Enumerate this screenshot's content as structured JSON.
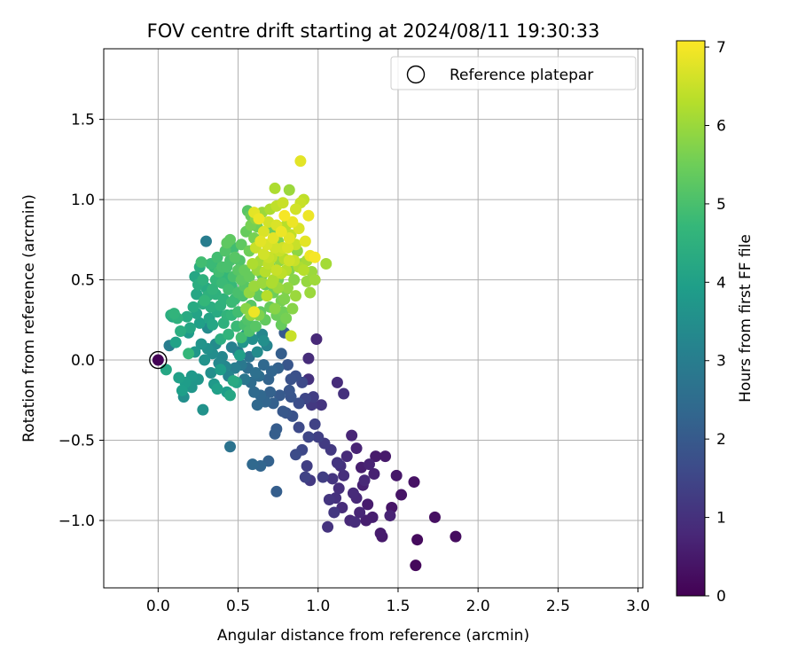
{
  "chart_data": {
    "type": "scatter",
    "title": "FOV centre drift starting at 2024/08/11 19:30:33",
    "xlabel": "Angular distance from reference (arcmin)",
    "ylabel": "Rotation from reference (arcmin)",
    "xlim": [
      -0.34,
      3.03
    ],
    "ylim": [
      -1.42,
      1.94
    ],
    "xticks": [
      0.0,
      0.5,
      1.0,
      1.5,
      2.0,
      2.5,
      3.0
    ],
    "xtick_labels": [
      "0.0",
      "0.5",
      "1.0",
      "1.5",
      "2.0",
      "2.5",
      "3.0"
    ],
    "yticks": [
      -1.0,
      -0.5,
      0.0,
      0.5,
      1.0,
      1.5
    ],
    "ytick_labels": [
      "−1.0",
      "−0.5",
      "0.0",
      "0.5",
      "1.0",
      "1.5"
    ],
    "grid": true,
    "legend": {
      "position": "top-right",
      "entries": [
        {
          "label": "Reference platepar",
          "marker": "open-circle",
          "x": 0.0,
          "y": 0.0
        }
      ]
    },
    "colorbar": {
      "label": "Hours from first FF file",
      "colormap": "viridis",
      "range": [
        0,
        7.08
      ],
      "ticks": [
        0,
        1,
        2,
        3,
        4,
        5,
        6,
        7
      ],
      "tick_labels": [
        "0",
        "1",
        "2",
        "3",
        "4",
        "5",
        "6",
        "7"
      ]
    },
    "colormap_stops": [
      "#440154",
      "#482878",
      "#3e4989",
      "#31688e",
      "#26828e",
      "#1f9e89",
      "#35b779",
      "#6ece58",
      "#b5de2b",
      "#fde725"
    ],
    "point_note": "[x arcmin, y arcmin, hours from first FF file]",
    "points": [
      [
        0.0,
        0.0,
        0.05
      ],
      [
        1.61,
        -1.28,
        0.15
      ],
      [
        1.62,
        -1.12,
        0.2
      ],
      [
        1.86,
        -1.1,
        0.25
      ],
      [
        1.73,
        -0.98,
        0.3
      ],
      [
        1.6,
        -0.76,
        0.35
      ],
      [
        1.52,
        -0.84,
        0.4
      ],
      [
        1.46,
        -0.92,
        0.4
      ],
      [
        1.49,
        -0.72,
        0.45
      ],
      [
        1.42,
        -0.6,
        0.5
      ],
      [
        1.4,
        -1.1,
        0.5
      ],
      [
        1.39,
        -1.08,
        0.55
      ],
      [
        1.34,
        -0.98,
        0.6
      ],
      [
        1.31,
        -0.9,
        0.55
      ],
      [
        1.3,
        -1.0,
        0.6
      ],
      [
        1.28,
        -0.78,
        0.65
      ],
      [
        1.36,
        -0.6,
        0.5
      ],
      [
        1.45,
        -0.97,
        0.7
      ],
      [
        1.26,
        -0.95,
        0.75
      ],
      [
        1.24,
        -0.86,
        0.8
      ],
      [
        1.22,
        -0.83,
        0.85
      ],
      [
        1.2,
        -1.0,
        0.8
      ],
      [
        1.15,
        -0.92,
        0.9
      ],
      [
        1.23,
        -1.01,
        0.9
      ],
      [
        1.27,
        -0.67,
        0.6
      ],
      [
        1.24,
        -0.55,
        0.7
      ],
      [
        1.21,
        -0.47,
        0.75
      ],
      [
        1.18,
        -0.6,
        0.85
      ],
      [
        1.14,
        -0.66,
        1.0
      ],
      [
        1.13,
        -0.8,
        0.95
      ],
      [
        1.11,
        -0.86,
        1.0
      ],
      [
        1.09,
        -0.74,
        1.1
      ],
      [
        1.06,
        -1.04,
        1.05
      ],
      [
        1.07,
        -0.87,
        1.1
      ],
      [
        1.1,
        -0.95,
        1.15
      ],
      [
        1.35,
        -0.71,
        0.65
      ],
      [
        1.32,
        -0.65,
        0.7
      ],
      [
        1.29,
        -0.75,
        0.8
      ],
      [
        1.16,
        -0.72,
        0.95
      ],
      [
        1.12,
        -0.64,
        1.1
      ],
      [
        1.08,
        -0.56,
        1.2
      ],
      [
        1.04,
        -0.52,
        1.25
      ],
      [
        1.03,
        -0.73,
        1.3
      ],
      [
        1.0,
        -0.48,
        1.35
      ],
      [
        0.98,
        -0.4,
        1.4
      ],
      [
        0.94,
        -0.48,
        1.5
      ],
      [
        0.93,
        -0.66,
        1.3
      ],
      [
        0.92,
        -0.73,
        1.4
      ],
      [
        0.95,
        -0.75,
        1.2
      ],
      [
        0.9,
        -0.56,
        1.55
      ],
      [
        0.88,
        -0.42,
        1.6
      ],
      [
        0.86,
        -0.59,
        1.65
      ],
      [
        0.96,
        -0.28,
        1.2
      ],
      [
        1.02,
        -0.28,
        1.1
      ],
      [
        0.94,
        -0.12,
        1.0
      ],
      [
        0.94,
        0.01,
        0.9
      ],
      [
        0.99,
        0.13,
        0.8
      ],
      [
        1.12,
        -0.14,
        0.9
      ],
      [
        1.16,
        -0.21,
        1.0
      ],
      [
        0.97,
        -0.23,
        1.3
      ],
      [
        0.92,
        -0.24,
        1.5
      ],
      [
        0.9,
        -0.14,
        1.6
      ],
      [
        0.88,
        -0.27,
        1.7
      ],
      [
        0.86,
        -0.1,
        1.75
      ],
      [
        0.84,
        -0.35,
        1.8
      ],
      [
        0.83,
        -0.23,
        1.85
      ],
      [
        0.8,
        -0.33,
        1.9
      ],
      [
        0.78,
        -0.32,
        1.95
      ],
      [
        0.76,
        -0.22,
        2.0
      ],
      [
        0.82,
        -0.19,
        1.9
      ],
      [
        0.74,
        -0.43,
        2.05
      ],
      [
        0.73,
        -0.46,
        2.1
      ],
      [
        0.72,
        -0.27,
        2.15
      ],
      [
        0.7,
        -0.2,
        2.2
      ],
      [
        0.69,
        -0.12,
        2.25
      ],
      [
        0.67,
        -0.26,
        2.3
      ],
      [
        0.64,
        -0.22,
        2.35
      ],
      [
        0.62,
        -0.28,
        2.4
      ],
      [
        0.6,
        -0.2,
        2.45
      ],
      [
        0.58,
        -0.14,
        2.5
      ],
      [
        0.56,
        -0.05,
        2.55
      ],
      [
        0.74,
        -0.82,
        2.1
      ],
      [
        0.69,
        -0.63,
        2.2
      ],
      [
        0.64,
        -0.66,
        2.3
      ],
      [
        0.59,
        -0.65,
        2.4
      ],
      [
        0.45,
        -0.54,
        2.7
      ],
      [
        0.83,
        -0.12,
        1.8
      ],
      [
        0.81,
        -0.03,
        1.9
      ],
      [
        0.79,
        0.17,
        2.0
      ],
      [
        0.77,
        0.04,
        2.1
      ],
      [
        0.75,
        -0.05,
        2.2
      ],
      [
        0.71,
        -0.07,
        2.3
      ],
      [
        0.66,
        -0.03,
        2.4
      ],
      [
        0.63,
        -0.1,
        2.5
      ],
      [
        0.61,
        -0.08,
        2.6
      ],
      [
        0.57,
        0.02,
        2.7
      ],
      [
        0.54,
        -0.12,
        2.8
      ],
      [
        0.52,
        -0.03,
        2.85
      ],
      [
        0.5,
        0.05,
        2.9
      ],
      [
        0.48,
        -0.05,
        3.0
      ],
      [
        0.46,
        0.08,
        3.1
      ],
      [
        0.44,
        -0.1,
        3.2
      ],
      [
        0.42,
        -0.04,
        3.25
      ],
      [
        0.4,
        0.02,
        3.3
      ],
      [
        0.38,
        -0.02,
        3.35
      ],
      [
        0.36,
        0.1,
        3.4
      ],
      [
        0.34,
        0.04,
        3.45
      ],
      [
        0.33,
        -0.08,
        3.5
      ],
      [
        0.31,
        0.07,
        3.55
      ],
      [
        0.29,
        0.0,
        3.6
      ],
      [
        0.27,
        0.1,
        3.65
      ],
      [
        0.25,
        -0.12,
        3.7
      ],
      [
        0.23,
        0.05,
        3.75
      ],
      [
        0.21,
        -0.1,
        3.8
      ],
      [
        0.19,
        0.17,
        3.85
      ],
      [
        0.17,
        -0.14,
        3.9
      ],
      [
        0.15,
        -0.19,
        3.95
      ],
      [
        0.13,
        -0.11,
        4.0
      ],
      [
        0.11,
        0.11,
        4.05
      ],
      [
        0.09,
        0.27,
        4.1
      ],
      [
        0.07,
        0.09,
        3.0
      ],
      [
        0.05,
        -0.06,
        4.2
      ],
      [
        0.16,
        -0.23,
        3.5
      ],
      [
        0.28,
        -0.31,
        3.6
      ],
      [
        0.21,
        -0.17,
        3.7
      ],
      [
        0.3,
        0.74,
        3.0
      ],
      [
        0.31,
        0.2,
        3.4
      ],
      [
        0.35,
        -0.15,
        3.8
      ],
      [
        0.37,
        -0.18,
        4.0
      ],
      [
        0.39,
        -0.06,
        3.9
      ],
      [
        0.43,
        -0.2,
        3.9
      ],
      [
        0.45,
        -0.22,
        4.2
      ],
      [
        0.47,
        -0.13,
        4.3
      ],
      [
        0.49,
        -0.14,
        4.1
      ],
      [
        0.51,
        0.03,
        4.0
      ],
      [
        0.53,
        0.11,
        3.7
      ],
      [
        0.55,
        0.16,
        3.6
      ],
      [
        0.59,
        0.13,
        3.5
      ],
      [
        0.62,
        0.05,
        3.4
      ],
      [
        0.65,
        0.16,
        3.3
      ],
      [
        0.68,
        0.09,
        3.2
      ],
      [
        0.66,
        0.12,
        3.5
      ],
      [
        0.26,
        0.23,
        4.0
      ],
      [
        0.24,
        0.29,
        4.1
      ],
      [
        0.2,
        0.2,
        4.2
      ],
      [
        0.18,
        0.27,
        4.3
      ],
      [
        0.14,
        0.18,
        4.4
      ],
      [
        0.12,
        0.26,
        4.5
      ],
      [
        0.1,
        0.29,
        4.6
      ],
      [
        0.08,
        0.28,
        4.4
      ],
      [
        0.22,
        0.33,
        4.3
      ],
      [
        0.24,
        0.41,
        4.2
      ],
      [
        0.28,
        0.35,
        4.35
      ],
      [
        0.33,
        0.33,
        4.4
      ],
      [
        0.36,
        0.41,
        4.5
      ],
      [
        0.38,
        0.49,
        4.6
      ],
      [
        0.41,
        0.38,
        4.55
      ],
      [
        0.43,
        0.52,
        4.7
      ],
      [
        0.46,
        0.46,
        4.75
      ],
      [
        0.48,
        0.38,
        4.8
      ],
      [
        0.5,
        0.3,
        4.9
      ],
      [
        0.53,
        0.4,
        5.0
      ],
      [
        0.56,
        0.25,
        5.1
      ],
      [
        0.58,
        0.34,
        5.2
      ],
      [
        0.6,
        0.44,
        5.25
      ],
      [
        0.63,
        0.4,
        5.3
      ],
      [
        0.65,
        0.53,
        5.35
      ],
      [
        0.67,
        0.47,
        5.4
      ],
      [
        0.7,
        0.58,
        5.45
      ],
      [
        0.72,
        0.42,
        5.5
      ],
      [
        0.75,
        0.5,
        5.55
      ],
      [
        0.77,
        0.37,
        5.6
      ],
      [
        0.8,
        0.44,
        5.7
      ],
      [
        0.82,
        0.56,
        5.75
      ],
      [
        0.85,
        0.5,
        5.8
      ],
      [
        0.87,
        0.68,
        5.85
      ],
      [
        0.9,
        0.6,
        5.9
      ],
      [
        0.93,
        0.49,
        5.95
      ],
      [
        0.95,
        0.42,
        6.0
      ],
      [
        0.98,
        0.5,
        6.05
      ],
      [
        1.05,
        0.6,
        6.1
      ],
      [
        0.78,
        0.3,
        5.5
      ],
      [
        0.74,
        0.28,
        5.45
      ],
      [
        0.7,
        0.33,
        5.4
      ],
      [
        0.67,
        0.25,
        5.35
      ],
      [
        0.64,
        0.3,
        5.3
      ],
      [
        0.61,
        0.21,
        5.2
      ],
      [
        0.57,
        0.18,
        5.1
      ],
      [
        0.54,
        0.22,
        5.0
      ],
      [
        0.52,
        0.14,
        4.9
      ],
      [
        0.49,
        0.21,
        4.8
      ],
      [
        0.46,
        0.28,
        4.7
      ],
      [
        0.44,
        0.16,
        4.6
      ],
      [
        0.41,
        0.23,
        4.5
      ],
      [
        0.39,
        0.13,
        4.4
      ],
      [
        0.37,
        0.3,
        4.3
      ],
      [
        0.34,
        0.22,
        4.2
      ],
      [
        0.32,
        0.26,
        4.1
      ],
      [
        0.3,
        0.45,
        4.3
      ],
      [
        0.28,
        0.5,
        4.5
      ],
      [
        0.25,
        0.47,
        4.4
      ],
      [
        0.23,
        0.52,
        4.2
      ],
      [
        0.26,
        0.58,
        4.4
      ],
      [
        0.33,
        0.6,
        4.8
      ],
      [
        0.37,
        0.64,
        4.9
      ],
      [
        0.4,
        0.58,
        5.0
      ],
      [
        0.42,
        0.68,
        5.1
      ],
      [
        0.45,
        0.62,
        5.0
      ],
      [
        0.47,
        0.7,
        4.9
      ],
      [
        0.45,
        0.75,
        5.3
      ],
      [
        0.51,
        0.62,
        5.1
      ],
      [
        0.54,
        0.56,
        5.4
      ],
      [
        0.57,
        0.68,
        5.5
      ],
      [
        0.6,
        0.76,
        5.6
      ],
      [
        0.62,
        0.83,
        5.5
      ],
      [
        0.58,
        0.9,
        5.4
      ],
      [
        0.56,
        0.93,
        5.2
      ],
      [
        0.6,
        0.92,
        6.8
      ],
      [
        0.63,
        0.88,
        6.9
      ],
      [
        0.66,
        0.8,
        6.7
      ],
      [
        0.69,
        0.86,
        6.6
      ],
      [
        0.72,
        0.76,
        6.8
      ],
      [
        0.74,
        0.84,
        6.7
      ],
      [
        0.77,
        0.8,
        6.9
      ],
      [
        0.79,
        0.9,
        7.0
      ],
      [
        0.82,
        0.76,
        6.8
      ],
      [
        0.84,
        0.86,
        6.9
      ],
      [
        0.86,
        0.94,
        6.6
      ],
      [
        0.89,
        0.98,
        6.5
      ],
      [
        0.91,
        1.0,
        6.4
      ],
      [
        0.94,
        0.9,
        6.9
      ],
      [
        0.88,
        0.82,
        6.7
      ],
      [
        0.92,
        0.74,
        6.8
      ],
      [
        0.95,
        0.65,
        6.9
      ],
      [
        0.98,
        0.64,
        7.0
      ],
      [
        0.79,
        0.63,
        6.3
      ],
      [
        0.76,
        0.68,
        6.5
      ],
      [
        0.73,
        0.7,
        6.6
      ],
      [
        0.71,
        0.64,
        6.4
      ],
      [
        0.68,
        0.72,
        6.7
      ],
      [
        0.66,
        0.66,
        6.6
      ],
      [
        0.64,
        0.74,
        6.8
      ],
      [
        0.61,
        0.7,
        6.5
      ],
      [
        0.59,
        0.6,
        6.2
      ],
      [
        0.62,
        0.56,
        6.0
      ],
      [
        0.64,
        0.62,
        6.1
      ],
      [
        0.67,
        0.55,
        6.3
      ],
      [
        0.69,
        0.6,
        6.4
      ],
      [
        0.72,
        0.5,
        6.2
      ],
      [
        0.74,
        0.56,
        6.5
      ],
      [
        0.77,
        0.54,
        6.4
      ],
      [
        0.8,
        0.56,
        6.3
      ],
      [
        0.82,
        0.62,
        6.6
      ],
      [
        0.85,
        0.62,
        6.5
      ],
      [
        0.82,
        1.06,
        6.0
      ],
      [
        0.73,
        1.07,
        6.2
      ],
      [
        0.89,
        1.24,
        6.8
      ],
      [
        0.6,
        0.46,
        6.0
      ],
      [
        0.57,
        0.42,
        5.9
      ],
      [
        0.55,
        0.32,
        5.8
      ],
      [
        0.68,
        0.4,
        6.3
      ],
      [
        0.71,
        0.48,
        6.2
      ],
      [
        0.75,
        0.45,
        6.0
      ],
      [
        0.73,
        0.32,
        5.8
      ],
      [
        0.65,
        0.48,
        6.0
      ],
      [
        0.6,
        0.3,
        6.9
      ],
      [
        0.83,
        0.15,
        6.5
      ],
      [
        0.58,
        0.28,
        5.9
      ],
      [
        0.63,
        0.28,
        5.7
      ],
      [
        0.79,
        0.38,
        5.7
      ],
      [
        0.81,
        0.45,
        5.9
      ],
      [
        0.52,
        0.5,
        5.3
      ],
      [
        0.5,
        0.56,
        5.2
      ],
      [
        0.47,
        0.52,
        5.0
      ],
      [
        0.44,
        0.44,
        4.9
      ],
      [
        0.4,
        0.48,
        4.8
      ],
      [
        0.36,
        0.5,
        4.7
      ],
      [
        0.34,
        0.44,
        4.6
      ],
      [
        0.31,
        0.4,
        4.5
      ],
      [
        0.29,
        0.37,
        4.7
      ],
      [
        0.35,
        0.58,
        4.7
      ],
      [
        0.38,
        0.55,
        4.9
      ],
      [
        0.43,
        0.58,
        5.0
      ],
      [
        0.48,
        0.64,
        5.2
      ],
      [
        0.52,
        0.72,
        5.3
      ],
      [
        0.55,
        0.8,
        5.4
      ],
      [
        0.58,
        0.84,
        5.6
      ],
      [
        0.61,
        0.88,
        5.8
      ],
      [
        0.65,
        0.92,
        6.0
      ],
      [
        0.7,
        0.94,
        6.2
      ],
      [
        0.74,
        0.96,
        6.4
      ],
      [
        0.78,
        0.98,
        6.5
      ],
      [
        0.8,
        0.84,
        6.3
      ],
      [
        0.83,
        0.78,
        6.4
      ],
      [
        0.86,
        0.72,
        6.5
      ],
      [
        0.88,
        0.58,
        6.2
      ],
      [
        0.91,
        0.56,
        6.3
      ],
      [
        0.93,
        0.62,
        6.1
      ],
      [
        0.96,
        0.55,
        6.0
      ],
      [
        0.86,
        0.4,
        6.0
      ],
      [
        0.84,
        0.32,
        5.8
      ],
      [
        0.8,
        0.26,
        5.6
      ],
      [
        0.77,
        0.22,
        5.4
      ],
      [
        0.43,
        0.28,
        4.6
      ],
      [
        0.39,
        0.34,
        4.5
      ],
      [
        0.46,
        0.36,
        4.8
      ],
      [
        0.5,
        0.42,
        5.0
      ],
      [
        0.54,
        0.46,
        5.2
      ],
      [
        0.57,
        0.52,
        5.4
      ],
      [
        0.19,
        0.04,
        4.7
      ],
      [
        0.27,
        0.61,
        4.9
      ],
      [
        0.43,
        0.73,
        5.3
      ],
      [
        0.71,
        0.82,
        5.5
      ],
      [
        0.75,
        0.74,
        5.7
      ],
      [
        0.76,
        0.62,
        5.9
      ],
      [
        0.78,
        0.7,
        6.6
      ],
      [
        0.81,
        0.7,
        6.7
      ],
      [
        0.69,
        0.64,
        6.5
      ]
    ]
  }
}
